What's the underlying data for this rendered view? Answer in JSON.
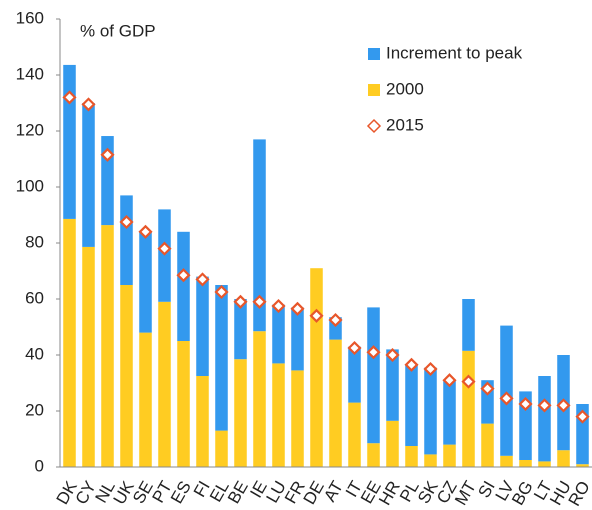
{
  "chart_data": {
    "type": "bar",
    "stacked": true,
    "y_label": "% of GDP",
    "categories": [
      "DK",
      "CY",
      "NL",
      "UK",
      "SE",
      "PT",
      "ES",
      "FI",
      "EL",
      "BE",
      "IE",
      "LU",
      "FR",
      "DE",
      "AT",
      "IT",
      "EE",
      "HR",
      "PL",
      "SK",
      "CZ",
      "MT",
      "SI",
      "LV",
      "BG",
      "LT",
      "HU",
      "RO"
    ],
    "series": [
      {
        "name": "Increment to peak",
        "type": "bar",
        "color": "#3399ee",
        "values": [
          55,
          51.4,
          31.8,
          32,
          36,
          33,
          39,
          35.5,
          52,
          21.5,
          68.5,
          21,
          22.5,
          0,
          8,
          20,
          48.5,
          25.5,
          29,
          31,
          23,
          18.5,
          15.5,
          46.5,
          24.5,
          30.5,
          34,
          21.5
        ]
      },
      {
        "name": "2000",
        "type": "bar",
        "color": "#ffcc22",
        "values": [
          88.6,
          78.6,
          86.4,
          65,
          48,
          59,
          45,
          32.5,
          13,
          38.5,
          48.5,
          37,
          34.5,
          71,
          45.5,
          23,
          8.5,
          16.5,
          7.5,
          4.5,
          8,
          41.5,
          15.5,
          4,
          2.5,
          2,
          6,
          1
        ]
      },
      {
        "name": "2015",
        "type": "scatter",
        "color": "#e8562a",
        "values": [
          132,
          129.5,
          111.5,
          87.5,
          84,
          78,
          68.5,
          67,
          62.5,
          59,
          59,
          57.5,
          56.5,
          54,
          52.5,
          42.5,
          41,
          40,
          36.5,
          35,
          31,
          30.5,
          28,
          24.5,
          22.5,
          22,
          22,
          18
        ]
      }
    ],
    "ylim": [
      0,
      160
    ],
    "yticks": [
      0,
      20,
      40,
      60,
      80,
      100,
      120,
      140,
      160
    ],
    "grid": false
  }
}
